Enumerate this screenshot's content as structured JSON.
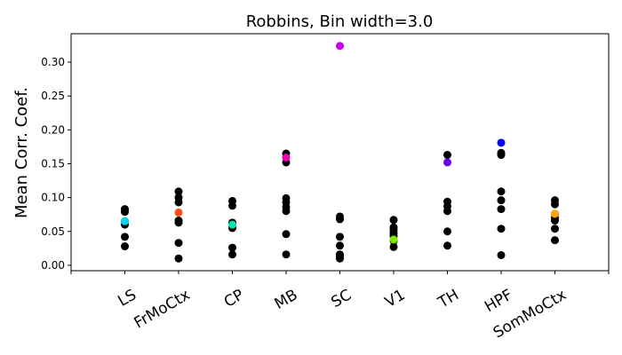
{
  "chart_data": {
    "type": "scatter",
    "title": "Robbins, Bin width=3.0",
    "ylabel": "Mean Corr. Coef.",
    "xlabel": "",
    "categories": [
      "LS",
      "FrMoCtx",
      "CP",
      "MB",
      "SC",
      "V1",
      "TH",
      "HPF",
      "SomMoCtx"
    ],
    "ylim": [
      -0.008,
      0.342
    ],
    "yticks": [
      "0.00",
      "0.05",
      "0.10",
      "0.15",
      "0.20",
      "0.25",
      "0.30"
    ],
    "grid": false,
    "legend": "none",
    "series": [
      {
        "color": "#000000",
        "points": [
          {
            "category": "LS",
            "values": [
              0.083,
              0.079,
              0.065,
              0.06,
              0.042,
              0.028
            ]
          },
          {
            "category": "FrMoCtx",
            "values": [
              0.109,
              0.1,
              0.093,
              0.066,
              0.063,
              0.033,
              0.01
            ]
          },
          {
            "category": "CP",
            "values": [
              0.095,
              0.088,
              0.063,
              0.06,
              0.055,
              0.026,
              0.016
            ]
          },
          {
            "category": "MB",
            "values": [
              0.165,
              0.152,
              0.099,
              0.093,
              0.086,
              0.08,
              0.046,
              0.016
            ]
          },
          {
            "category": "SC",
            "values": [
              0.072,
              0.068,
              0.042,
              0.029,
              0.016,
              0.013,
              0.01
            ]
          },
          {
            "category": "V1",
            "values": [
              0.067,
              0.056,
              0.052,
              0.047,
              0.043,
              0.036,
              0.027
            ]
          },
          {
            "category": "TH",
            "values": [
              0.163,
              0.094,
              0.087,
              0.08,
              0.05,
              0.029
            ]
          },
          {
            "category": "HPF",
            "values": [
              0.166,
              0.163,
              0.109,
              0.096,
              0.083,
              0.054,
              0.015
            ]
          },
          {
            "category": "SomMoCtx",
            "values": [
              0.096,
              0.09,
              0.076,
              0.07,
              0.066,
              0.054,
              0.037
            ]
          }
        ]
      },
      {
        "color": "#00d7ee",
        "points": [
          {
            "category": "LS",
            "values": [
              0.065
            ]
          }
        ]
      },
      {
        "color": "#ff4c14",
        "points": [
          {
            "category": "FrMoCtx",
            "values": [
              0.078
            ]
          }
        ]
      },
      {
        "color": "#00e3b4",
        "points": [
          {
            "category": "CP",
            "values": [
              0.06
            ]
          }
        ]
      },
      {
        "color": "#ee00aa",
        "points": [
          {
            "category": "MB",
            "values": [
              0.159
            ]
          }
        ]
      },
      {
        "color": "#cc00ee",
        "points": [
          {
            "category": "SC",
            "values": [
              0.324
            ]
          }
        ]
      },
      {
        "color": "#7bea00",
        "points": [
          {
            "category": "V1",
            "values": [
              0.038
            ]
          }
        ]
      },
      {
        "color": "#6600ee",
        "points": [
          {
            "category": "TH",
            "values": [
              0.152
            ]
          }
        ]
      },
      {
        "color": "#0000ff",
        "points": [
          {
            "category": "HPF",
            "values": [
              0.181
            ]
          }
        ]
      },
      {
        "color": "#ffa500",
        "points": [
          {
            "category": "SomMoCtx",
            "values": [
              0.076
            ]
          }
        ]
      }
    ]
  }
}
